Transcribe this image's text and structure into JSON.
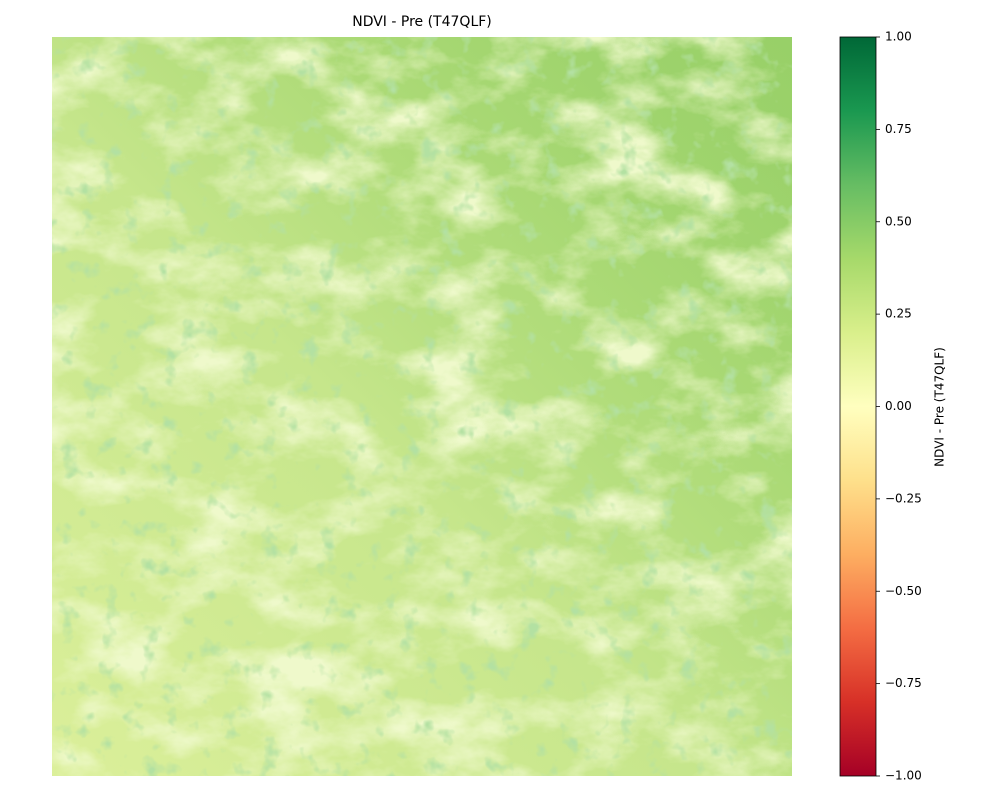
{
  "chart_data": {
    "type": "image",
    "title": "NDVI - Pre (T47QLF)",
    "colorbar_label": "NDVI - Pre (T47QLF)",
    "colormap": [
      "#a50026",
      "#d73027",
      "#f46d43",
      "#fdae61",
      "#fee08b",
      "#ffffbf",
      "#d9ef8b",
      "#a6d96a",
      "#66bd63",
      "#1a9850",
      "#006837"
    ],
    "clim": [
      -1,
      1
    ],
    "cticks": [
      {
        "value": -1,
        "label": "−1.00"
      },
      {
        "value": -0.75,
        "label": "−0.75"
      },
      {
        "value": -0.5,
        "label": "−0.50"
      },
      {
        "value": -0.25,
        "label": "−0.25"
      },
      {
        "value": 0,
        "label": "0.00"
      },
      {
        "value": 0.25,
        "label": "0.25"
      },
      {
        "value": 0.5,
        "label": "0.50"
      },
      {
        "value": 0.75,
        "label": "0.75"
      },
      {
        "value": 1,
        "label": "1.00"
      }
    ]
  }
}
